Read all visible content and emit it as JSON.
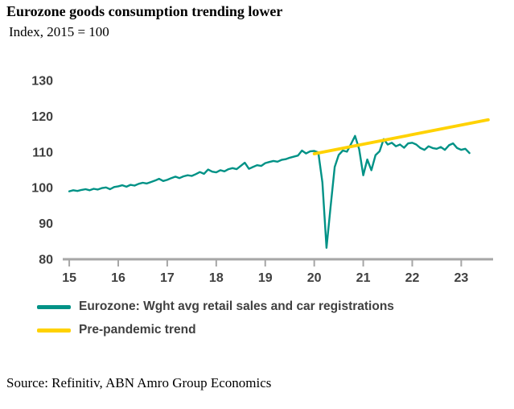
{
  "header": {
    "title": "Eurozone goods consumption trending lower",
    "subtitle": "Index, 2015 = 100"
  },
  "source": "Source: Refinitiv, ABN Amro Group Economics",
  "colors": {
    "teal": "#009286",
    "yellow": "#FFD200",
    "axis": "#a6a6a6",
    "tick_text": "#404040"
  },
  "chart_data": {
    "type": "line",
    "title": "Eurozone goods consumption trending lower",
    "subtitle": "Index, 2015 = 100",
    "xlabel": "",
    "ylabel": "Index, 2015 = 100",
    "xlim": [
      14.9,
      23.65
    ],
    "ylim": [
      80,
      130
    ],
    "xticks": [
      15,
      16,
      17,
      18,
      19,
      20,
      21,
      22,
      23
    ],
    "xtick_labels": [
      "15",
      "16",
      "17",
      "18",
      "19",
      "20",
      "21",
      "22",
      "23"
    ],
    "yticks": [
      80,
      90,
      100,
      110,
      120,
      130
    ],
    "grid": false,
    "legend_position": "bottom-left",
    "series": [
      {
        "name": "Eurozone: Wght avg retail sales and car registrations",
        "color": "#009286",
        "width": 2.4,
        "x": [
          15,
          15.083,
          15.167,
          15.25,
          15.333,
          15.417,
          15.5,
          15.583,
          15.667,
          15.75,
          15.833,
          15.917,
          16,
          16.083,
          16.167,
          16.25,
          16.333,
          16.417,
          16.5,
          16.583,
          16.667,
          16.75,
          16.833,
          16.917,
          17,
          17.083,
          17.167,
          17.25,
          17.333,
          17.417,
          17.5,
          17.583,
          17.667,
          17.75,
          17.833,
          17.917,
          18,
          18.083,
          18.167,
          18.25,
          18.333,
          18.417,
          18.5,
          18.583,
          18.667,
          18.75,
          18.833,
          18.917,
          19,
          19.083,
          19.167,
          19.25,
          19.333,
          19.417,
          19.5,
          19.583,
          19.667,
          19.75,
          19.833,
          19.917,
          20,
          20.083,
          20.167,
          20.25,
          20.333,
          20.417,
          20.5,
          20.583,
          20.667,
          20.75,
          20.833,
          20.917,
          21,
          21.083,
          21.167,
          21.25,
          21.333,
          21.417,
          21.5,
          21.583,
          21.667,
          21.75,
          21.833,
          21.917,
          22,
          22.083,
          22.167,
          22.25,
          22.333,
          22.417,
          22.5,
          22.583,
          22.667,
          22.75,
          22.833,
          22.917,
          23,
          23.083,
          23.167
        ],
        "y": [
          99.0,
          99.3,
          99.1,
          99.4,
          99.6,
          99.3,
          99.7,
          99.5,
          99.9,
          100.1,
          99.6,
          100.2,
          100.4,
          100.7,
          100.3,
          100.8,
          100.6,
          101.1,
          101.4,
          101.2,
          101.6,
          102.0,
          102.5,
          101.9,
          102.2,
          102.7,
          103.1,
          102.7,
          103.2,
          103.5,
          103.3,
          103.8,
          104.4,
          103.9,
          105.1,
          104.5,
          104.3,
          104.9,
          104.6,
          105.2,
          105.5,
          105.2,
          106.1,
          107.0,
          105.3,
          105.8,
          106.3,
          106.1,
          106.9,
          107.2,
          107.5,
          107.3,
          107.8,
          108.0,
          108.4,
          108.7,
          109.0,
          110.4,
          109.6,
          110.2,
          110.3,
          109.9,
          101.5,
          83.2,
          94.5,
          105.8,
          109.2,
          110.4,
          110.1,
          112.2,
          114.5,
          110.8,
          103.5,
          107.9,
          104.9,
          109.1,
          110.2,
          113.6,
          112.1,
          112.6,
          111.6,
          112.1,
          111.2,
          112.4,
          112.6,
          112.1,
          111.1,
          110.6,
          111.6,
          111.1,
          110.9,
          111.4,
          110.6,
          111.9,
          112.4,
          111.1,
          110.6,
          110.9,
          109.7
        ]
      },
      {
        "name": "Pre-pandemic trend",
        "color": "#FFD200",
        "width": 3.8,
        "x": [
          20.0,
          23.55
        ],
        "y": [
          109.5,
          119.0
        ]
      }
    ]
  }
}
